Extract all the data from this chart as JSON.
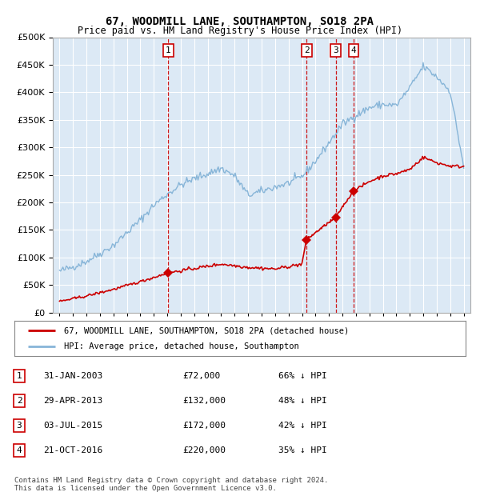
{
  "title": "67, WOODMILL LANE, SOUTHAMPTON, SO18 2PA",
  "subtitle": "Price paid vs. HM Land Registry's House Price Index (HPI)",
  "background_color": "#ffffff",
  "plot_bg_color": "#dce9f5",
  "hpi_color": "#87b5d8",
  "price_color": "#cc0000",
  "grid_color": "#ffffff",
  "dashed_line_color": "#cc0000",
  "purchases": [
    {
      "label": "1",
      "date_x": 2003.08,
      "price": 72000
    },
    {
      "label": "2",
      "date_x": 2013.33,
      "price": 132000
    },
    {
      "label": "3",
      "date_x": 2015.5,
      "price": 172000
    },
    {
      "label": "4",
      "date_x": 2016.83,
      "price": 220000
    }
  ],
  "table_rows": [
    [
      "1",
      "31-JAN-2003",
      "£72,000",
      "66% ↓ HPI"
    ],
    [
      "2",
      "29-APR-2013",
      "£132,000",
      "48% ↓ HPI"
    ],
    [
      "3",
      "03-JUL-2015",
      "£172,000",
      "42% ↓ HPI"
    ],
    [
      "4",
      "21-OCT-2016",
      "£220,000",
      "35% ↓ HPI"
    ]
  ],
  "legend_entries": [
    {
      "label": "67, WOODMILL LANE, SOUTHAMPTON, SO18 2PA (detached house)",
      "color": "#cc0000"
    },
    {
      "label": "HPI: Average price, detached house, Southampton",
      "color": "#87b5d8"
    }
  ],
  "footnote": "Contains HM Land Registry data © Crown copyright and database right 2024.\nThis data is licensed under the Open Government Licence v3.0.",
  "ylim": [
    0,
    500000
  ],
  "yticks": [
    0,
    50000,
    100000,
    150000,
    200000,
    250000,
    300000,
    350000,
    400000,
    450000,
    500000
  ],
  "xlim_start": 1994.5,
  "xlim_end": 2025.5,
  "xticks": [
    1995,
    1996,
    1997,
    1998,
    1999,
    2000,
    2001,
    2002,
    2003,
    2004,
    2005,
    2006,
    2007,
    2008,
    2009,
    2010,
    2011,
    2012,
    2013,
    2014,
    2015,
    2016,
    2017,
    2018,
    2019,
    2020,
    2021,
    2022,
    2023,
    2024,
    2025
  ]
}
